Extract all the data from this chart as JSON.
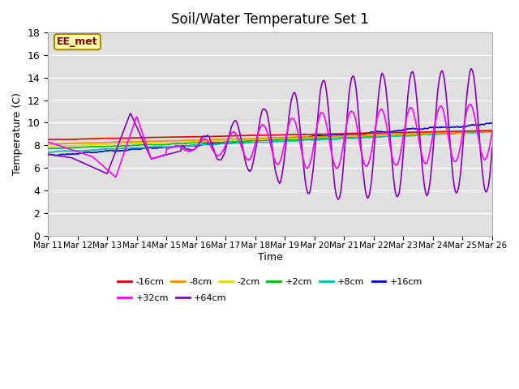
{
  "title": "Soil/Water Temperature Set 1",
  "xlabel": "Time",
  "ylabel": "Temperature (C)",
  "ylim": [
    0,
    18
  ],
  "yticks": [
    0,
    2,
    4,
    6,
    8,
    10,
    12,
    14,
    16,
    18
  ],
  "n_days": 15,
  "x_tick_labels": [
    "Mar 11",
    "Mar 12",
    "Mar 13",
    "Mar 14",
    "Mar 15",
    "Mar 16",
    "Mar 17",
    "Mar 18",
    "Mar 19",
    "Mar 20",
    "Mar 21",
    "Mar 22",
    "Mar 23",
    "Mar 24",
    "Mar 25",
    "Mar 26"
  ],
  "series": [
    {
      "label": "-16cm",
      "color": "#dd0000"
    },
    {
      "label": "-8cm",
      "color": "#ff8800"
    },
    {
      "label": "-2cm",
      "color": "#dddd00"
    },
    {
      "label": "+2cm",
      "color": "#00bb00"
    },
    {
      "label": "+8cm",
      "color": "#00bbbb"
    },
    {
      "label": "+16cm",
      "color": "#0000cc"
    },
    {
      "label": "+32cm",
      "color": "#ff00ff"
    },
    {
      "label": "+64cm",
      "color": "#8800bb"
    }
  ],
  "annotation_text": "EE_met",
  "annotation_fg": "#880000",
  "annotation_bg": "#ffffaa",
  "annotation_border": "#aa8800",
  "plot_bg": "#e0e0e0",
  "grid_color": "#ffffff",
  "title_fontsize": 12
}
